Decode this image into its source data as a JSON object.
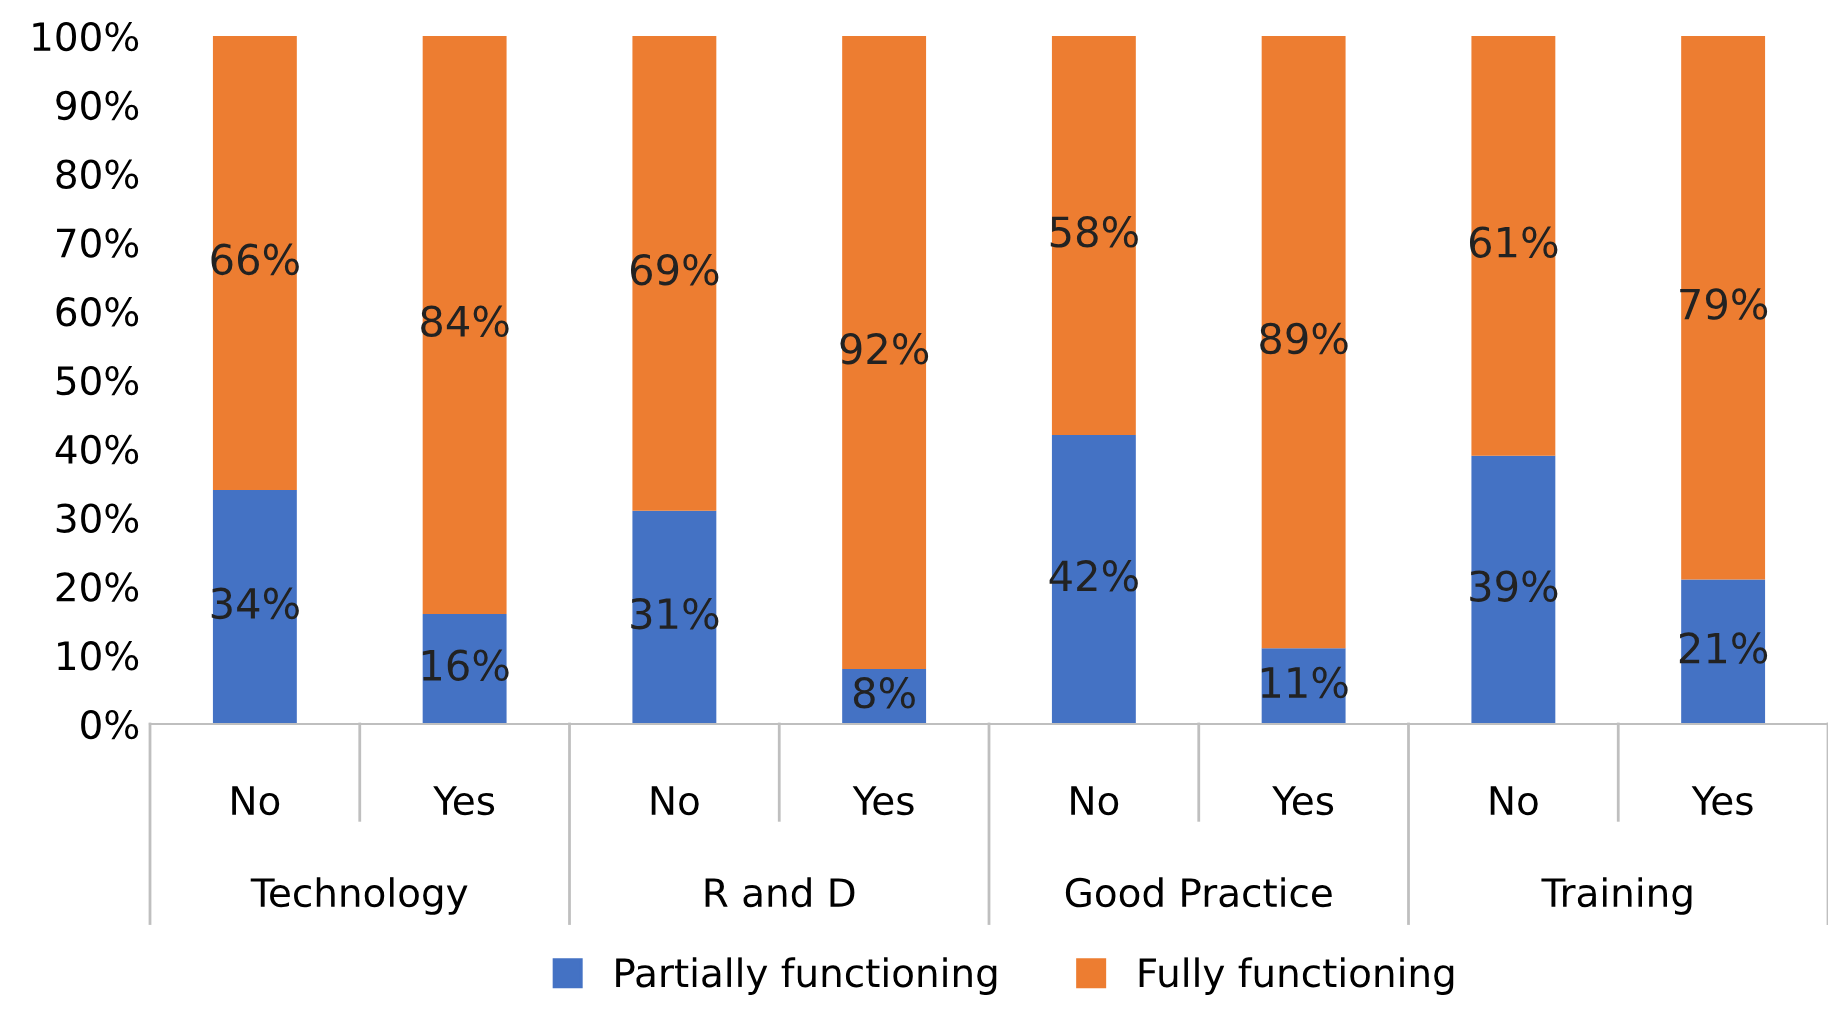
{
  "chart_data": {
    "type": "bar",
    "stacked": true,
    "categories": [
      "No",
      "Yes",
      "No",
      "Yes",
      "No",
      "Yes",
      "No",
      "Yes"
    ],
    "series": [
      {
        "name": "Partially functioning",
        "color": "#4472c4",
        "values": [
          34,
          16,
          31,
          8,
          42,
          11,
          39,
          21
        ],
        "value_labels": [
          "34%",
          "16%",
          "31%",
          "8%",
          "42%",
          "11%",
          "39%",
          "21%"
        ]
      },
      {
        "name": "Fully functioning",
        "color": "#ed7d31",
        "values": [
          66,
          84,
          69,
          92,
          58,
          89,
          61,
          79
        ],
        "value_labels": [
          "66%",
          "84%",
          "69%",
          "92%",
          "58%",
          "89%",
          "61%",
          "79%"
        ]
      }
    ],
    "annotations": [
      "Technology",
      "R and D",
      "Good Practice",
      "Training"
    ],
    "ylim": [
      0,
      100
    ],
    "yticks": [
      {
        "value": 0,
        "label": "0%"
      },
      {
        "value": 10,
        "label": "10%"
      },
      {
        "value": 20,
        "label": "20%"
      },
      {
        "value": 30,
        "label": "30%"
      },
      {
        "value": 40,
        "label": "40%"
      },
      {
        "value": 50,
        "label": "50%"
      },
      {
        "value": 60,
        "label": "60%"
      },
      {
        "value": 70,
        "label": "70%"
      },
      {
        "value": 80,
        "label": "80%"
      },
      {
        "value": 90,
        "label": "90%"
      },
      {
        "value": 100,
        "label": "100%"
      }
    ],
    "grid": false,
    "legend": "bottom"
  }
}
